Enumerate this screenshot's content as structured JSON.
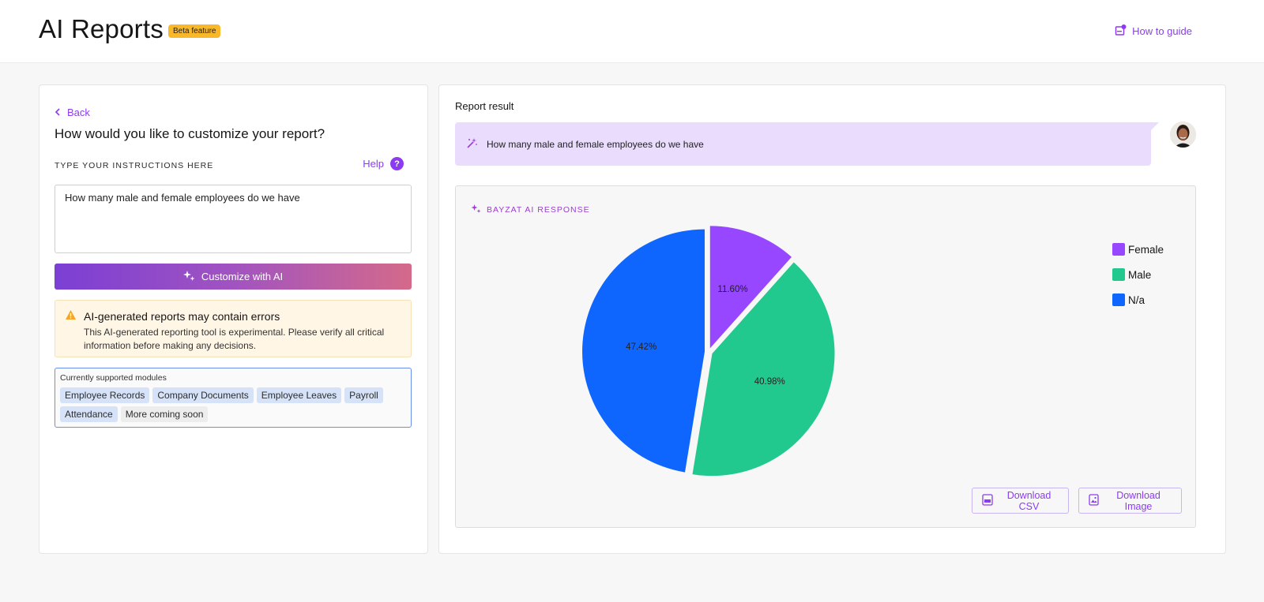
{
  "header": {
    "title": "AI Reports",
    "badge": "Beta feature",
    "guide_label": "How to guide"
  },
  "left": {
    "back_label": "Back",
    "question": "How would you like to customize your report?",
    "instructions_label": "TYPE YOUR INSTRUCTIONS HERE",
    "help_label": "Help",
    "help_symbol": "?",
    "instructions_value": "How many male and female employees do we have",
    "customize_label": "Customize with AI",
    "warning": {
      "title": "AI-generated reports may contain errors",
      "text": "This AI-generated reporting tool is experimental. Please verify all critical information before making any decisions."
    },
    "modules": {
      "label": "Currently supported modules",
      "items": [
        "Employee Records",
        "Company Documents",
        "Employee Leaves",
        "Payroll",
        "Attendance"
      ],
      "more": "More coming soon"
    }
  },
  "right": {
    "title": "Report result",
    "prompt": "How many male and female employees do we have",
    "response_label": "BAYZAT AI RESPONSE",
    "download_csv": "Download CSV",
    "download_image": "Download Image"
  },
  "colors": {
    "accent": "#8c3cf0",
    "female": "#9747ff",
    "male": "#22c98f",
    "na": "#0f66ff"
  },
  "chart_data": {
    "type": "pie",
    "labels": [
      "Female",
      "Male",
      "N/a"
    ],
    "values": [
      11.6,
      40.98,
      47.42
    ],
    "data_labels": [
      "11.60%",
      "40.98%",
      "47.42%"
    ],
    "colors": [
      "#9747ff",
      "#22c98f",
      "#0f66ff"
    ],
    "legend_position": "top-right"
  }
}
